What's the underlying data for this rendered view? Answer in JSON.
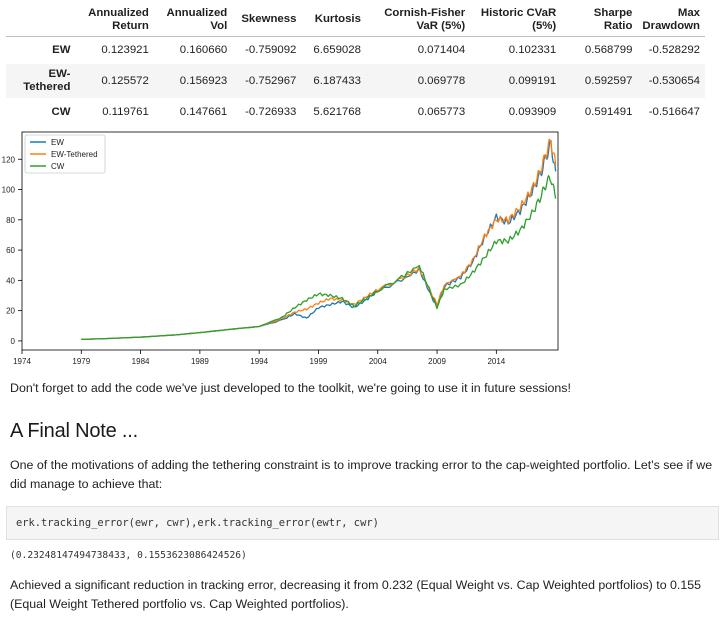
{
  "table": {
    "headers": [
      {
        "line1": "Annualized",
        "line2": "Return"
      },
      {
        "line1": "Annualized",
        "line2": "Vol"
      },
      {
        "line1": "Skewness",
        "line2": ""
      },
      {
        "line1": "Kurtosis",
        "line2": ""
      },
      {
        "line1": "Cornish-Fisher",
        "line2": "VaR (5%)"
      },
      {
        "line1": "Historic CVaR",
        "line2": "(5%)"
      },
      {
        "line1": "Sharpe",
        "line2": "Ratio"
      },
      {
        "line1": "Max",
        "line2": "Drawdown"
      }
    ],
    "rows": [
      {
        "label": "EW",
        "label2": "",
        "values": [
          "0.123921",
          "0.160660",
          "-0.759092",
          "6.659028",
          "0.071404",
          "0.102331",
          "0.568799",
          "-0.528292"
        ]
      },
      {
        "label": "EW-",
        "label2": "Tethered",
        "values": [
          "0.125572",
          "0.156923",
          "-0.752967",
          "6.187433",
          "0.069778",
          "0.099191",
          "0.592597",
          "-0.530654"
        ]
      },
      {
        "label": "CW",
        "label2": "",
        "values": [
          "0.119761",
          "0.147661",
          "-0.726933",
          "5.621768",
          "0.065773",
          "0.093909",
          "0.591491",
          "-0.516647"
        ]
      }
    ]
  },
  "chart_data": {
    "type": "line",
    "x_ticks": [
      1974,
      1979,
      1984,
      1989,
      1994,
      1999,
      2004,
      2009,
      2014
    ],
    "y_ticks": [
      0,
      20,
      40,
      60,
      80,
      100,
      120
    ],
    "xlim": [
      1974,
      2019.2
    ],
    "ylim": [
      -6,
      138
    ],
    "legend": "top-left",
    "grid": false,
    "series": [
      {
        "name": "EW",
        "color": "#1f77b4",
        "points": [
          [
            1979,
            1
          ],
          [
            1981,
            1.5
          ],
          [
            1984,
            2.5
          ],
          [
            1987,
            4
          ],
          [
            1989,
            5.5
          ],
          [
            1992,
            8
          ],
          [
            1994,
            9.5
          ],
          [
            1996,
            14
          ],
          [
            1997,
            18
          ],
          [
            1998,
            15
          ],
          [
            1999,
            22
          ],
          [
            2000,
            24
          ],
          [
            2001,
            26
          ],
          [
            2002,
            22
          ],
          [
            2003,
            27
          ],
          [
            2004,
            33
          ],
          [
            2006,
            40
          ],
          [
            2007.5,
            47
          ],
          [
            2008.5,
            30
          ],
          [
            2009,
            22
          ],
          [
            2009.6,
            36
          ],
          [
            2011,
            42
          ],
          [
            2012,
            52
          ],
          [
            2013,
            68
          ],
          [
            2014,
            82
          ],
          [
            2015,
            78
          ],
          [
            2016,
            86
          ],
          [
            2017,
            98
          ],
          [
            2017.8,
            112
          ],
          [
            2018.2,
            122
          ],
          [
            2018.6,
            130
          ],
          [
            2019,
            112
          ]
        ]
      },
      {
        "name": "EW-Tethered",
        "color": "#ff7f0e",
        "points": [
          [
            1979,
            1
          ],
          [
            1981,
            1.5
          ],
          [
            1984,
            2.5
          ],
          [
            1987,
            4
          ],
          [
            1989,
            5.5
          ],
          [
            1992,
            8
          ],
          [
            1994,
            9.5
          ],
          [
            1996,
            15
          ],
          [
            1997,
            19
          ],
          [
            1998,
            21
          ],
          [
            1999,
            25
          ],
          [
            2000,
            28
          ],
          [
            2001,
            27
          ],
          [
            2002,
            24
          ],
          [
            2003,
            29
          ],
          [
            2004,
            34
          ],
          [
            2006,
            41
          ],
          [
            2007.5,
            48
          ],
          [
            2008.5,
            32
          ],
          [
            2009,
            24
          ],
          [
            2009.6,
            37
          ],
          [
            2011,
            43
          ],
          [
            2012,
            53
          ],
          [
            2013,
            69
          ],
          [
            2014,
            80
          ],
          [
            2015,
            80
          ],
          [
            2016,
            88
          ],
          [
            2017,
            100
          ],
          [
            2017.8,
            114
          ],
          [
            2018.2,
            124
          ],
          [
            2018.6,
            132
          ],
          [
            2019,
            116
          ]
        ]
      },
      {
        "name": "CW",
        "color": "#2ca02c",
        "points": [
          [
            1979,
            1
          ],
          [
            1981,
            1.5
          ],
          [
            1984,
            2.5
          ],
          [
            1987,
            4
          ],
          [
            1989,
            5.5
          ],
          [
            1992,
            8
          ],
          [
            1994,
            9.5
          ],
          [
            1996,
            16
          ],
          [
            1997,
            22
          ],
          [
            1998,
            27
          ],
          [
            1999,
            31
          ],
          [
            2000,
            30
          ],
          [
            2001,
            28
          ],
          [
            2002,
            23
          ],
          [
            2003,
            28
          ],
          [
            2004,
            33
          ],
          [
            2006,
            42
          ],
          [
            2007.5,
            50
          ],
          [
            2008.5,
            31
          ],
          [
            2009,
            22
          ],
          [
            2009.6,
            34
          ],
          [
            2011,
            37
          ],
          [
            2012,
            45
          ],
          [
            2013,
            55
          ],
          [
            2014,
            66
          ],
          [
            2015,
            66
          ],
          [
            2016,
            73
          ],
          [
            2017,
            84
          ],
          [
            2017.8,
            96
          ],
          [
            2018.2,
            104
          ],
          [
            2018.6,
            108
          ],
          [
            2019,
            94
          ]
        ]
      }
    ]
  },
  "text": {
    "p1": "Don't forget to add the code we've just developed to the toolkit, we're going to use it in future sessions!",
    "heading": "A Final Note ...",
    "p2": "One of the motivations of adding the tethering constraint is to improve tracking error to the cap-weighted portfolio. Let's see if we did manage to achieve that:",
    "code_a": "erk.tracking_error(ewr, cwr),erk.tracking_error(ewtr, cwr)",
    "output": "(0.23248147494738433, 0.1553623086424526)",
    "p3": "Achieved a significant reduction in tracking error, decreasing it from 0.232 (Equal Weight vs. Cap Weighted portfolios) to 0.155 (Equal Weight Tethered portfolio vs. Cap Weighted portfolios)."
  }
}
